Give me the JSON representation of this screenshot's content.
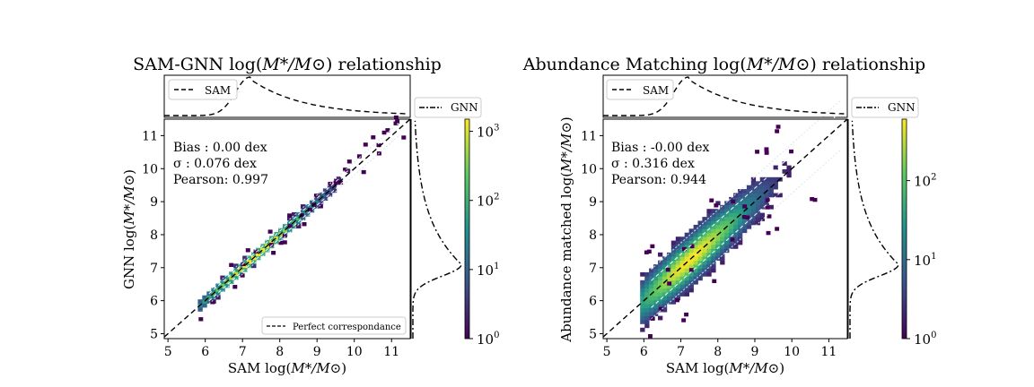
{
  "chart_data": [
    {
      "type": "heatmap",
      "title": "SAM-GNN log(M*/M⊙) relationship",
      "title_text": "SAM-GNN log(",
      "title_math": "M*/M⊙",
      "title_tail": ") relationship",
      "xlabel_text": "SAM log(",
      "xlabel_math": "M*/M⊙",
      "xlabel_tail": ")",
      "ylabel_text": "GNN log(",
      "ylabel_math": "M*/M⊙",
      "ylabel_tail": ")",
      "xlim": [
        4.9,
        11.5
      ],
      "ylim": [
        4.85,
        11.5
      ],
      "xticks": [
        5,
        6,
        7,
        8,
        9,
        10,
        11
      ],
      "yticks": [
        5,
        6,
        7,
        8,
        9,
        10,
        11
      ],
      "x_range": [
        5.8,
        11.3
      ],
      "density_peak": 7.3,
      "scatter_width": 0.09,
      "colorbar": {
        "scale": "log",
        "min": 1,
        "max": 1500,
        "tick_base": "10",
        "tick_exponents": [
          "0",
          "1",
          "2",
          "3"
        ]
      },
      "stats": [
        "Bias : 0.00 dex",
        "σ : 0.076 dex",
        "Pearson:  0.997"
      ],
      "legend_main": "Perfect correspondance",
      "top_hist_legend": "SAM",
      "right_hist_legend": "GNN",
      "right_hist_peak": 7.1,
      "colors": {
        "cmap": [
          "#440154",
          "#3b528b",
          "#21918c",
          "#5ec962",
          "#fde725"
        ]
      }
    },
    {
      "type": "heatmap",
      "title": "Abundance Matching log(M*/M⊙) relationship",
      "title_text": "Abundance Matching log(",
      "title_math": "M*/M⊙",
      "title_tail": ") relationship",
      "xlabel_text": "SAM log(",
      "xlabel_math": "M*/M⊙",
      "xlabel_tail": ")",
      "ylabel_text": "Abundance matched log(",
      "ylabel_math": "M*/M⊙",
      "ylabel_tail": ")",
      "xlim": [
        4.9,
        11.5
      ],
      "ylim": [
        4.85,
        11.5
      ],
      "xticks": [
        5,
        6,
        7,
        8,
        9,
        10,
        11
      ],
      "yticks": [
        5,
        6,
        7,
        8,
        9,
        10,
        11
      ],
      "x_range": [
        5.9,
        11.4
      ],
      "density_peak": 7.2,
      "scatter_width": 0.34,
      "colorbar": {
        "scale": "log",
        "min": 1,
        "max": 600,
        "tick_base": "10",
        "tick_exponents": [
          "0",
          "1",
          "2"
        ]
      },
      "stats": [
        "Bias : -0.00 dex",
        "σ : 0.316 dex",
        "Pearson:  0.944"
      ],
      "legend_main": "",
      "top_hist_legend": "SAM",
      "right_hist_legend": "GNN",
      "right_hist_peak": 7.1,
      "colors": {
        "cmap": [
          "#440154",
          "#3b528b",
          "#21918c",
          "#5ec962",
          "#fde725"
        ]
      }
    }
  ]
}
